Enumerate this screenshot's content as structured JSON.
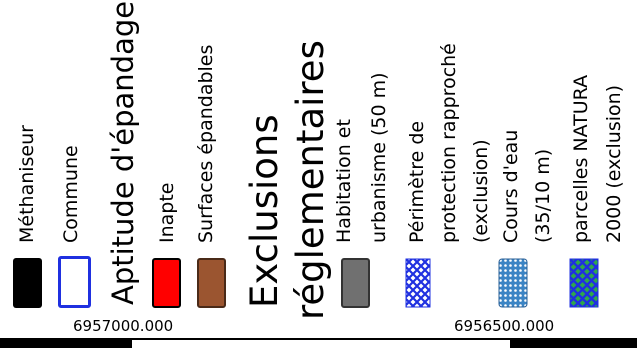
{
  "legend": {
    "items": [
      {
        "label": "Méthaniseur",
        "kind": "solid",
        "color": "#000000"
      },
      {
        "label": "Commune",
        "kind": "outline",
        "color": "#1f30e0"
      },
      {
        "label": "Aptitude d'épandage",
        "kind": "heading"
      },
      {
        "label": "Inapte",
        "kind": "solid",
        "color": "#ff0000"
      },
      {
        "label": "Surfaces épandables",
        "kind": "solid",
        "color": "#9b5530"
      },
      {
        "label": "Exclusions réglementaires",
        "kind": "heading_big"
      },
      {
        "label": "Habitation et urbanisme (50 m)",
        "kind": "solid",
        "color": "#707070"
      },
      {
        "label": "Périmètre de protection rapproché (exclusion)",
        "kind": "hatch",
        "color": "#1f30e0"
      },
      {
        "label": "Cours d'eau (35/10 m)",
        "kind": "dots",
        "color": "#3b84c4"
      },
      {
        "label": "parcelles NATURA 2000 (exclusion)",
        "kind": "hatch_green",
        "color": "#2fa84a"
      }
    ],
    "labels": {
      "methaniseur": "Méthaniseur",
      "commune": "Commune",
      "aptitude": "Aptitude d'épandage",
      "inapte": "Inapte",
      "surfaces": "Surfaces épandables",
      "exclusions_1": "Exclusions",
      "exclusions_2": "réglementaires",
      "habitation_1": "Habitation et",
      "habitation_2": "urbanisme (50 m)",
      "perimetre_1": "Périmètre de",
      "perimetre_2": "protection rapproché",
      "perimetre_3": "(exclusion)",
      "cours_1": "Cours d'eau",
      "cours_2": "(35/10 m)",
      "natura_1": "parcelles NATURA",
      "natura_2": "2000 (exclusion)"
    }
  },
  "coordinates": {
    "left": "6957000.000",
    "right": "6956500.000"
  },
  "colors": {
    "black": "#000000",
    "blue": "#1f30e0",
    "red": "#ff0000",
    "brown": "#9b5530",
    "grey": "#707070",
    "water": "#3b84c4",
    "green": "#2fa84a"
  }
}
